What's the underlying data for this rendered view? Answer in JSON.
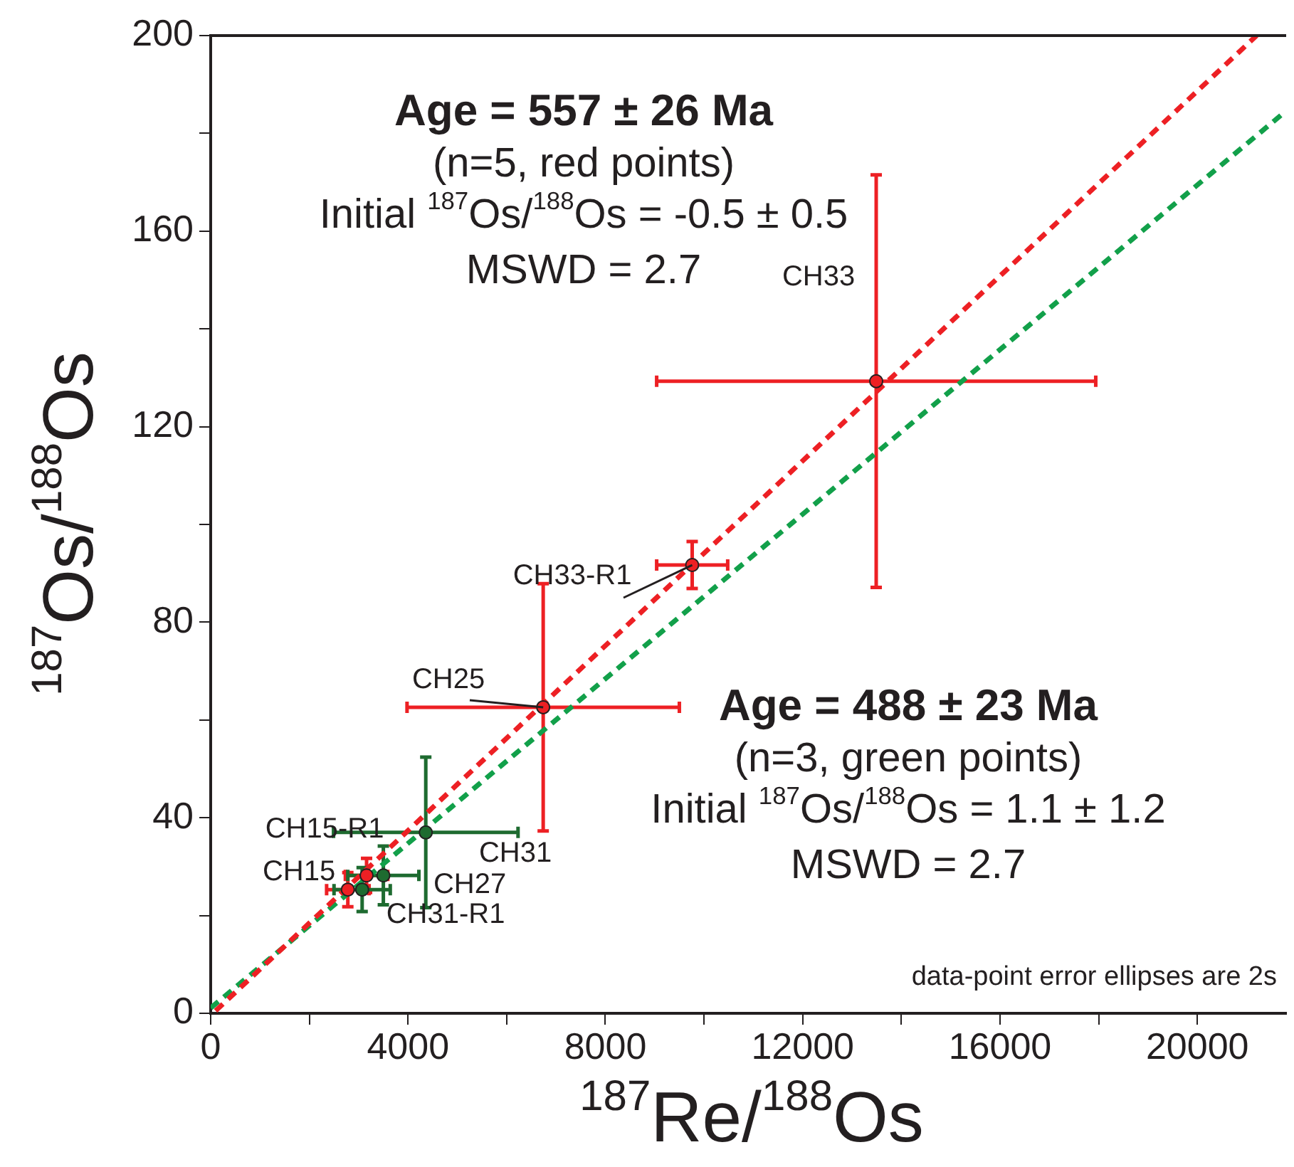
{
  "chart_data": {
    "type": "scatter",
    "xlabel": "$^{187}$Re/$^{188}$Os",
    "ylabel": "$^{187}$Os/$^{188}$Os",
    "xlim": [
      0,
      21800
    ],
    "ylim": [
      0,
      200
    ],
    "xticks": [
      0,
      {
        "value": 2000,
        "label": null
      },
      4000,
      {
        "value": 6000,
        "label": null
      },
      8000,
      {
        "value": 10000,
        "label": null
      },
      12000,
      {
        "value": 14000,
        "label": null
      },
      16000,
      {
        "value": 18000,
        "label": null
      },
      20000
    ],
    "yticks": [
      0,
      {
        "value": 20,
        "label": null
      },
      40,
      {
        "value": 60,
        "label": null
      },
      80,
      {
        "value": 100,
        "label": null
      },
      120,
      {
        "value": 140,
        "label": null
      },
      160,
      {
        "value": 180,
        "label": null
      },
      200
    ],
    "grid": false,
    "legend": false,
    "series": [
      {
        "color": "#ed2024",
        "marker": "circle",
        "x": [
          13490,
          9760,
          6740,
          2780,
          3160
        ],
        "values": [
          129.3,
          91.7,
          62.6,
          25.3,
          28.2
        ],
        "xerrors": [
          4450,
          720,
          2760,
          430,
          430
        ],
        "errors": [
          42.2,
          4.8,
          25.3,
          3.5,
          3.5
        ]
      },
      {
        "color": "#1e6b30",
        "marker": "circle",
        "x": [
          4360,
          3500,
          3070
        ],
        "values": [
          37,
          28.2,
          25.3
        ],
        "xerrors": [
          1870,
          720,
          570
        ],
        "errors": [
          15.4,
          6,
          4.5
        ]
      },
      {
        "type": "line",
        "color": "#ed2024",
        "line_style": "dashed",
        "x": [
          100,
          21200
        ],
        "values": [
          0.5,
          200
        ]
      },
      {
        "type": "line",
        "color": "#12a04a",
        "line_style": "dashed",
        "x": [
          0,
          21800
        ],
        "values": [
          1.1,
          184.6
        ]
      }
    ],
    "annotations": [
      "Age = 557 ± 26 Ma\n(n=5, red points)\nInitial $^{187}$Os/$^{188}$Os = -0.5 ± 0.5\nMSWD = 2.7",
      "Age = 488 ± 23 Ma\n(n=3, green points)\nInitial $^{187}$Os/$^{188}$Os = 1.1 ± 1.2\nMSWD = 2.7",
      "data-point error ellipses are 2s",
      "CH33",
      {
        "text": "CH33-R1",
        "x": 9760,
        "y": 91.7
      },
      {
        "text": "CH25",
        "x": 6740,
        "y": 62.6
      },
      "CH15-R1",
      "CH15",
      "CH31",
      "CH27",
      "CH31-R1"
    ]
  }
}
